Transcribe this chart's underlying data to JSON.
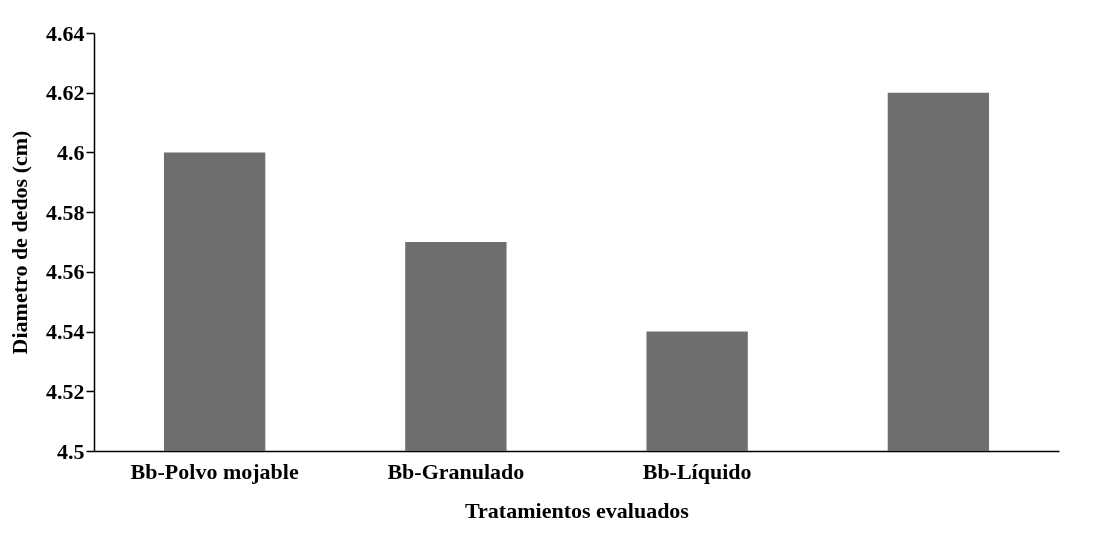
{
  "chart_data": {
    "type": "bar",
    "xlabel": "Tratamientos evaluados",
    "ylabel": "Diametro de dedos (cm)",
    "categories": [
      "Bb-Polvo mojable",
      "Bb-Granulado",
      "Bb-Líquido",
      null
    ],
    "values": [
      4.6,
      4.57,
      4.54,
      4.62
    ],
    "color": "#6e6e6e",
    "ylim": [
      4.5,
      4.64
    ],
    "yticks": [
      {
        "value": 4.5,
        "label": "4.5"
      },
      4.52,
      4.54,
      4.56,
      4.58,
      {
        "value": 4.6,
        "label": "4.6"
      },
      4.62,
      4.64
    ],
    "grid": false
  }
}
